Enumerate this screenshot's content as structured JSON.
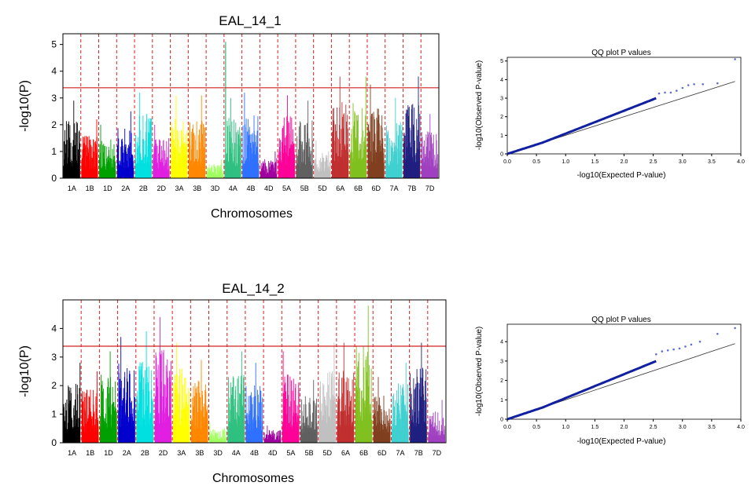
{
  "chart_data": [
    {
      "type": "scatter",
      "subtype": "manhattan",
      "title": "EAL_14_1",
      "xlabel": "Chromosomes",
      "ylabel": "-log10(P)",
      "ylim": [
        0,
        5.4
      ],
      "yticks": [
        0,
        1,
        2,
        3,
        4,
        5
      ],
      "threshold": 3.38,
      "categories": [
        "1A",
        "1B",
        "1D",
        "2A",
        "2B",
        "2D",
        "3A",
        "3B",
        "3D",
        "4A",
        "4B",
        "4D",
        "5A",
        "5B",
        "5D",
        "6A",
        "6B",
        "6D",
        "7A",
        "7B",
        "7D"
      ],
      "colors": [
        "#000000",
        "#ff0000",
        "#00a000",
        "#0000cc",
        "#00e0e0",
        "#e020e0",
        "#ffff00",
        "#ff8800",
        "#a0ff60",
        "#30c080",
        "#3070ff",
        "#a000a0",
        "#ff0099",
        "#606060",
        "#c0c0c0",
        "#c03030",
        "#80c020",
        "#804020",
        "#40d0d0",
        "#202080",
        "#a040c0"
      ],
      "max_values": [
        2.9,
        2.2,
        2.0,
        2.5,
        3.2,
        2.0,
        3.1,
        3.1,
        0.7,
        3.0,
        3.2,
        1.0,
        3.1,
        2.9,
        1.4,
        3.8,
        3.8,
        3.5,
        3.0,
        3.8,
        2.4
      ],
      "annotations": [
        {
          "chromosome": "4A",
          "value": 5.1
        }
      ]
    },
    {
      "type": "scatter",
      "subtype": "manhattan",
      "title": "EAL_14_2",
      "xlabel": "Chromosomes",
      "ylabel": "-log10(P)",
      "ylim": [
        0,
        5.0
      ],
      "yticks": [
        0,
        1,
        2,
        3,
        4
      ],
      "threshold": 3.38,
      "categories": [
        "1A",
        "1B",
        "1D",
        "2A",
        "2B",
        "2D",
        "3A",
        "3B",
        "3D",
        "4A",
        "4B",
        "4D",
        "5A",
        "5B",
        "5D",
        "6A",
        "6B",
        "6D",
        "7A",
        "7B",
        "7D"
      ],
      "colors": [
        "#000000",
        "#ff0000",
        "#00a000",
        "#0000cc",
        "#00e0e0",
        "#e020e0",
        "#ffff00",
        "#ff8800",
        "#a0ff60",
        "#30c080",
        "#3070ff",
        "#a000a0",
        "#ff0099",
        "#606060",
        "#c0c0c0",
        "#c03030",
        "#80c020",
        "#804020",
        "#40d0d0",
        "#202080",
        "#a040c0"
      ],
      "max_values": [
        2.8,
        2.5,
        3.2,
        3.7,
        3.9,
        4.4,
        3.5,
        2.9,
        0.7,
        3.2,
        2.8,
        0.6,
        3.2,
        2.2,
        3.5,
        3.5,
        4.8,
        2.3,
        2.8,
        3.5,
        1.5
      ]
    },
    {
      "type": "scatter",
      "subtype": "qq",
      "title": "QQ plot P values",
      "xlabel": "-log10(Expected P-value)",
      "ylabel": "-log10(Observed P-value)",
      "xlim": [
        0,
        4.0
      ],
      "ylim": [
        0,
        5.2
      ],
      "xticks": [
        0.0,
        0.5,
        1.0,
        1.5,
        2.0,
        2.5,
        3.0,
        3.5,
        4.0
      ],
      "yticks": [
        0,
        1,
        2,
        3,
        4,
        5
      ],
      "reference_line": [
        [
          0,
          0
        ],
        [
          3.9,
          3.9
        ]
      ],
      "outlier_points": [
        [
          2.6,
          3.25
        ],
        [
          2.7,
          3.3
        ],
        [
          2.8,
          3.3
        ],
        [
          2.9,
          3.4
        ],
        [
          3.0,
          3.55
        ],
        [
          3.1,
          3.7
        ],
        [
          3.2,
          3.75
        ],
        [
          3.35,
          3.75
        ],
        [
          3.6,
          3.8
        ],
        [
          3.9,
          5.1
        ]
      ]
    },
    {
      "type": "scatter",
      "subtype": "qq",
      "title": "QQ plot P values",
      "xlabel": "-log10(Expected P-value)",
      "ylabel": "-log10(Observed P-value)",
      "xlim": [
        0,
        4.0
      ],
      "ylim": [
        0,
        4.9
      ],
      "xticks": [
        0.0,
        0.5,
        1.0,
        1.5,
        2.0,
        2.5,
        3.0,
        3.5,
        4.0
      ],
      "yticks": [
        0,
        1,
        2,
        3,
        4
      ],
      "reference_line": [
        [
          0,
          0
        ],
        [
          3.9,
          3.9
        ]
      ],
      "outlier_points": [
        [
          2.55,
          3.35
        ],
        [
          2.65,
          3.5
        ],
        [
          2.75,
          3.55
        ],
        [
          2.85,
          3.6
        ],
        [
          2.95,
          3.65
        ],
        [
          3.05,
          3.75
        ],
        [
          3.15,
          3.85
        ],
        [
          3.3,
          4.0
        ],
        [
          3.6,
          4.4
        ],
        [
          3.9,
          4.7
        ]
      ]
    }
  ]
}
